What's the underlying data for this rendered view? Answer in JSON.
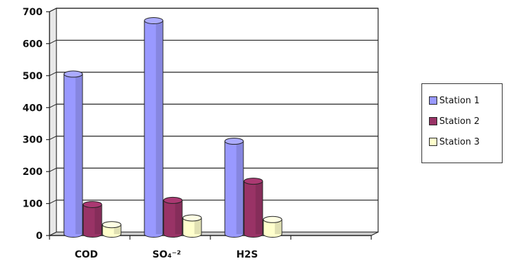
{
  "chart_data": {
    "type": "bar",
    "title": "",
    "xlabel": "",
    "ylabel": "",
    "categories": [
      "COD",
      "SO₄⁻²",
      "H2S",
      ""
    ],
    "series": [
      {
        "name": "Station 1",
        "values": [
          505,
          672,
          295,
          null
        ],
        "color": "#9999ff"
      },
      {
        "name": "Station 2",
        "values": [
          97,
          110,
          170,
          null
        ],
        "color": "#993366"
      },
      {
        "name": "Station 3",
        "values": [
          34,
          55,
          50,
          null
        ],
        "color": "#ffffcc"
      }
    ],
    "ylim": [
      0,
      700
    ],
    "yticks": [
      0,
      100,
      200,
      300,
      400,
      500,
      600,
      700
    ],
    "grid": true,
    "legend_position": "right"
  }
}
